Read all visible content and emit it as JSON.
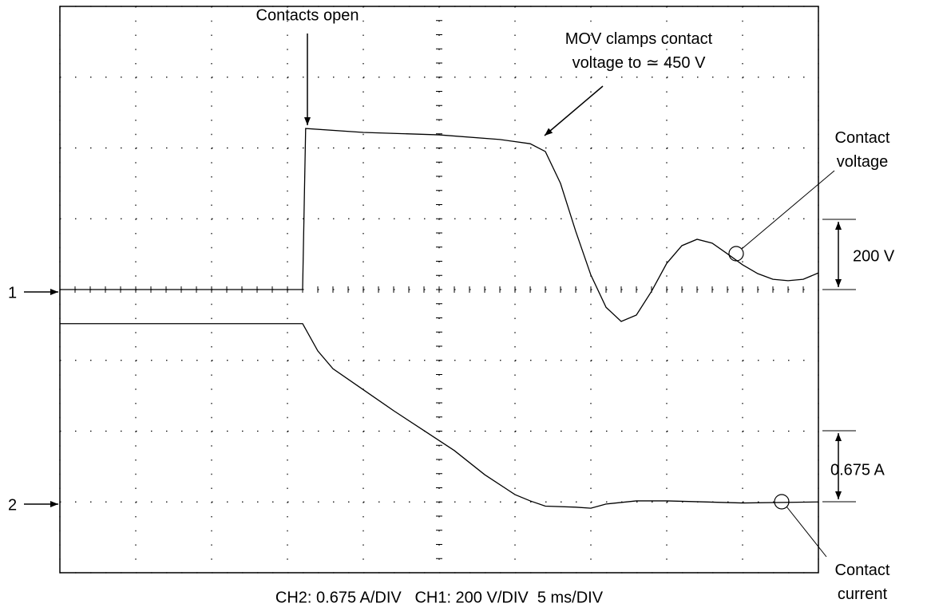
{
  "chart_data": {
    "type": "line",
    "footer": "CH2: 0.675 A/DIV   CH1: 200 V/DIV  5 ms/DIV",
    "xlim": [
      0,
      50
    ],
    "xticks": [
      0,
      5,
      10,
      15,
      20,
      25,
      30,
      35,
      40,
      45,
      50
    ],
    "ylim": [
      -800,
      800
    ],
    "yticks": [
      -800,
      -600,
      -400,
      -200,
      0,
      200,
      400,
      600,
      800
    ],
    "y2lim": [
      -0.675,
      4.725
    ],
    "grid": true,
    "series": [
      {
        "name": "Contact voltage",
        "color": "#000000",
        "channel": "1",
        "x": [
          0,
          16.0,
          16.2,
          20,
          25,
          29,
          31,
          32,
          33,
          34,
          35,
          36,
          37,
          38,
          39,
          40,
          41,
          42,
          43,
          44,
          45,
          46,
          47,
          48,
          49,
          50
        ],
        "values": [
          0,
          0,
          455,
          444,
          437,
          424,
          412,
          390,
          300,
          165,
          41,
          -50,
          -90,
          -72,
          -5,
          74,
          124,
          142,
          131,
          101,
          70,
          45,
          29,
          25,
          29,
          47
        ]
      },
      {
        "name": "Contact current",
        "color": "#000000",
        "channel": "2",
        "axis": "y2",
        "x": [
          0,
          16.0,
          17,
          18,
          20,
          22,
          24,
          26,
          28,
          30,
          31,
          32,
          34,
          35,
          36,
          38,
          40,
          45,
          50
        ],
        "values": [
          1.7,
          1.7,
          1.44,
          1.27,
          1.07,
          0.87,
          0.68,
          0.49,
          0.26,
          0.07,
          0.01,
          -0.04,
          -0.05,
          -0.06,
          -0.02,
          0.01,
          0.01,
          -0.01,
          0
        ]
      }
    ],
    "annotations": [
      "Contacts open",
      "MOV clamps contact voltage to ≃ 450 V"
    ],
    "scale_labels": [
      "200 V",
      "0.675 A"
    ]
  }
}
